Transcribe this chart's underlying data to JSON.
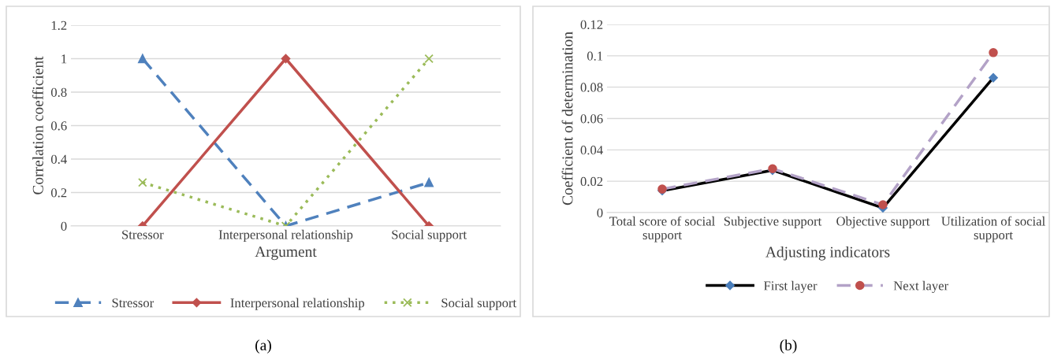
{
  "chart_data": [
    {
      "type": "line",
      "xlabel": "Argument",
      "ylabel": "Correlation coefficient",
      "categories": [
        "Stressor",
        "Interpersonal relationship",
        "Social support"
      ],
      "series": [
        {
          "name": "Stressor",
          "color": "#4f81bd",
          "values": [
            1,
            0,
            0.26
          ],
          "marker": "triangle",
          "line_style": "dashed"
        },
        {
          "name": "Interpersonal relationship",
          "color": "#c0504d",
          "values": [
            0,
            1,
            0
          ],
          "marker": "diamond",
          "line_style": "solid"
        },
        {
          "name": "Social support",
          "color": "#9bbb59",
          "values": [
            0.26,
            0,
            1
          ],
          "marker": "cross",
          "line_style": "dotted"
        }
      ],
      "ylim": [
        0,
        1.2
      ],
      "yticks": [
        0,
        0.2,
        0.4,
        0.6,
        0.8,
        1,
        1.2
      ],
      "grid": "y",
      "legend": "bottom",
      "annotations": [
        "(a)"
      ]
    },
    {
      "type": "line",
      "xlabel": "Adjusting indicators",
      "ylabel": "Coefficient of determination",
      "categories": [
        "Total score of social\nsupport",
        "Subjective support",
        "Objective support",
        "Utilization of social\nsupport"
      ],
      "series": [
        {
          "name": "First layer",
          "color": "#000000",
          "colors": [
            "#4a7ebb",
            "#4a7ebb",
            "#4a7ebb",
            "#4a7ebb"
          ],
          "values": [
            0.014,
            0.027,
            0.003,
            0.086
          ],
          "marker": "diamond",
          "line_style": "solid"
        },
        {
          "name": "Next layer",
          "color": "#b3a2c7",
          "colors": [
            "#c0504d",
            "#c0504d",
            "#c0504d",
            "#c0504d"
          ],
          "values": [
            0.015,
            0.028,
            0.005,
            0.102
          ],
          "marker": "circle",
          "line_style": "dashed"
        }
      ],
      "ylim": [
        0,
        0.12
      ],
      "yticks": [
        0,
        0.02,
        0.04,
        0.06,
        0.08,
        0.1,
        0.12
      ],
      "grid": "y",
      "legend": "bottom",
      "annotations": [
        "(b)"
      ]
    }
  ]
}
